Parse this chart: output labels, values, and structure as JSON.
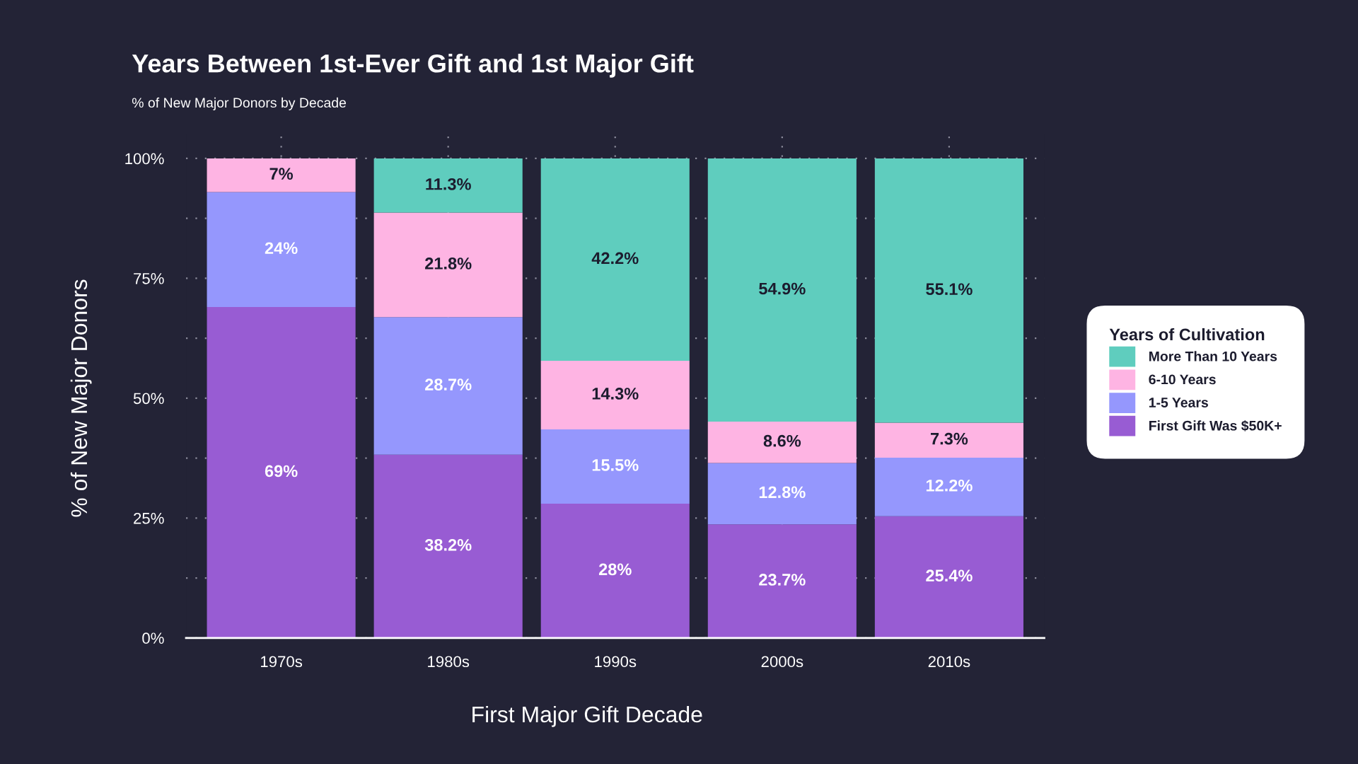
{
  "chart_data": {
    "type": "bar",
    "title": "Years Between 1st-Ever Gift and 1st Major Gift",
    "subtitle": "% of New Major Donors by Decade",
    "xlabel": "First Major Gift Decade",
    "ylabel": "% of New Major Donors",
    "legend_title": "Years of Cultivation",
    "categories": [
      "1970s",
      "1980s",
      "1990s",
      "2000s",
      "2010s"
    ],
    "stacked": true,
    "series": [
      {
        "name": "First Gift Was $50K+",
        "color": "#985cd3",
        "values": [
          69,
          38.2,
          28,
          23.7,
          25.4
        ],
        "value_labels": [
          "69%",
          "38.2%",
          "28%",
          "23.7%",
          "25.4%"
        ]
      },
      {
        "name": "1-5 Years",
        "color": "#9597fd",
        "values": [
          24,
          28.7,
          15.5,
          12.8,
          12.2
        ],
        "value_labels": [
          "24%",
          "28.7%",
          "15.5%",
          "12.8%",
          "12.2%"
        ]
      },
      {
        "name": "6-10 Years",
        "color": "#feb4e3",
        "values": [
          7,
          21.8,
          14.3,
          8.6,
          7.3
        ],
        "value_labels": [
          "7%",
          "21.8%",
          "14.3%",
          "8.6%",
          "7.3%"
        ]
      },
      {
        "name": "More Than 10 Years",
        "color": "#5fcdbe",
        "values": [
          null,
          11.3,
          42.2,
          54.9,
          55.1
        ],
        "value_labels": [
          null,
          "11.3%",
          "42.2%",
          "54.9%",
          "55.1%"
        ]
      }
    ],
    "ylim": [
      0,
      105
    ],
    "yticks": [
      {
        "value": 0,
        "label": "0%"
      },
      {
        "value": 12.5,
        "label": null
      },
      {
        "value": 25,
        "label": "25%"
      },
      {
        "value": 37.5,
        "label": null
      },
      {
        "value": 50,
        "label": "50%"
      },
      {
        "value": 62.5,
        "label": null
      },
      {
        "value": 75,
        "label": "75%"
      },
      {
        "value": 87.5,
        "label": null
      },
      {
        "value": 100,
        "label": "100%"
      }
    ],
    "grid": true,
    "legend": "right"
  }
}
